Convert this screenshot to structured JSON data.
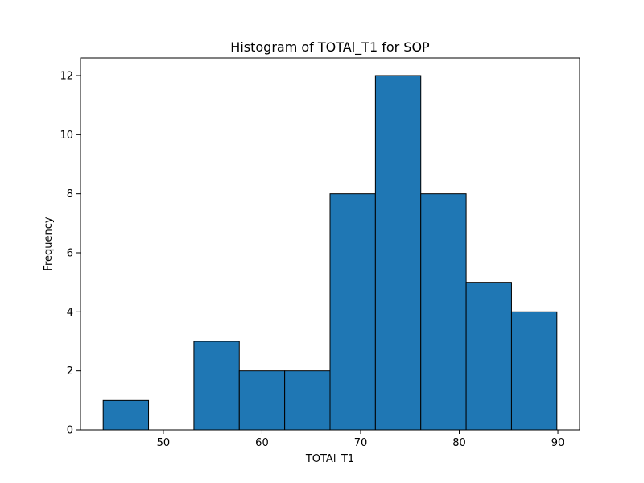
{
  "chart_data": {
    "type": "bar",
    "title": "Histogram of TOTAl_T1 for SOP",
    "xlabel": "TOTAl_T1",
    "ylabel": "Frequency",
    "bin_edges": [
      43.9,
      48.5,
      53.1,
      57.7,
      62.3,
      66.9,
      71.5,
      76.1,
      80.7,
      85.3,
      89.9
    ],
    "values": [
      1,
      0,
      3,
      2,
      2,
      8,
      12,
      8,
      5,
      4
    ],
    "xlim": [
      41.6,
      92.2
    ],
    "ylim": [
      0,
      12.6
    ],
    "xticks": [
      50,
      60,
      70,
      80,
      90
    ],
    "yticks": [
      0,
      2,
      4,
      6,
      8,
      10,
      12
    ],
    "grid": false,
    "colors": {
      "bar_fill": "#1f77b4",
      "bar_edge": "#000000"
    }
  }
}
